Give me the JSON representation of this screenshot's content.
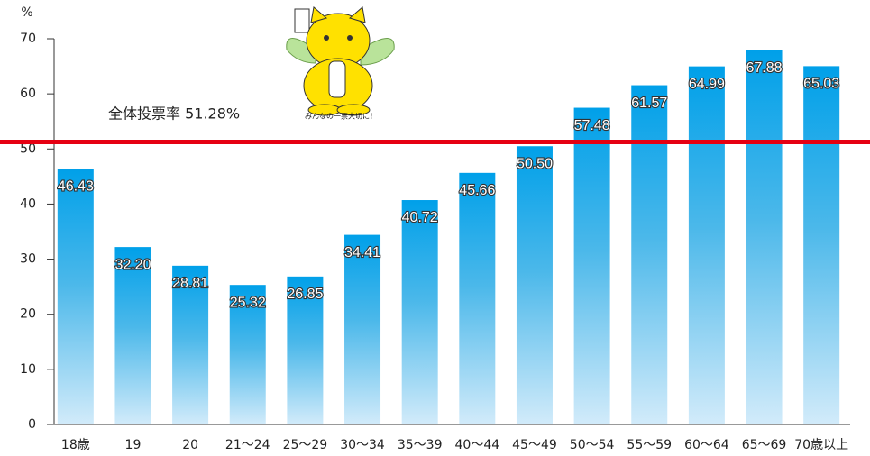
{
  "chart_data": {
    "type": "bar",
    "y_unit": "%",
    "categories": [
      "18歳",
      "19",
      "20",
      "21〜24",
      "25〜29",
      "30〜34",
      "35〜39",
      "40〜44",
      "45〜49",
      "50〜54",
      "55〜59",
      "60〜64",
      "65〜69",
      "70歳以上"
    ],
    "values": [
      46.43,
      32.2,
      28.81,
      25.32,
      26.85,
      34.41,
      40.72,
      45.66,
      50.5,
      57.48,
      61.57,
      64.99,
      67.88,
      65.03
    ],
    "value_labels": [
      "46.43",
      "32.20",
      "28.81",
      "25.32",
      "26.85",
      "34.41",
      "40.72",
      "45.66",
      "50.50",
      "57.48",
      "61.57",
      "64.99",
      "67.88",
      "65.03"
    ],
    "color": "#00a0e9",
    "ylim": [
      0,
      70
    ],
    "yticks": [
      0,
      10,
      20,
      30,
      40,
      50,
      60,
      70
    ],
    "reference_line": {
      "value": 51.28,
      "label": "全体投票率 51.28%",
      "color": "#e60012"
    },
    "mascot_caption": "みんなの一票大切に！"
  }
}
